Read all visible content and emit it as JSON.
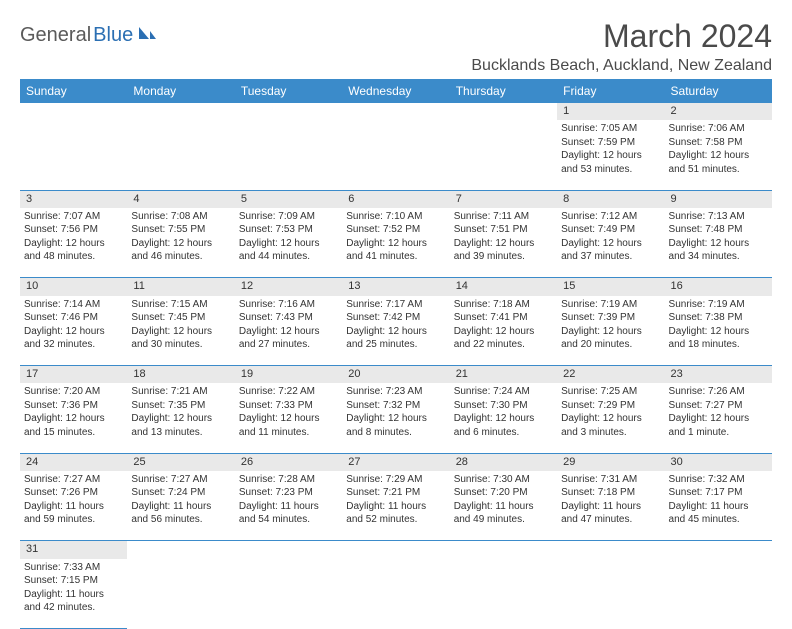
{
  "logo": {
    "text1": "General",
    "text2": "Blue"
  },
  "title": "March 2024",
  "location": "Bucklands Beach, Auckland, New Zealand",
  "colors": {
    "header_bg": "#3b8bca",
    "header_text": "#ffffff",
    "daynum_bg": "#e9e9e9",
    "row_divider": "#3b8bca",
    "text": "#333333",
    "logo_gray": "#5a5a5a",
    "logo_blue": "#2b6fb3"
  },
  "daysOfWeek": [
    "Sunday",
    "Monday",
    "Tuesday",
    "Wednesday",
    "Thursday",
    "Friday",
    "Saturday"
  ],
  "weeks": [
    [
      null,
      null,
      null,
      null,
      null,
      {
        "n": "1",
        "sunrise": "Sunrise: 7:05 AM",
        "sunset": "Sunset: 7:59 PM",
        "day1": "Daylight: 12 hours",
        "day2": "and 53 minutes."
      },
      {
        "n": "2",
        "sunrise": "Sunrise: 7:06 AM",
        "sunset": "Sunset: 7:58 PM",
        "day1": "Daylight: 12 hours",
        "day2": "and 51 minutes."
      }
    ],
    [
      {
        "n": "3",
        "sunrise": "Sunrise: 7:07 AM",
        "sunset": "Sunset: 7:56 PM",
        "day1": "Daylight: 12 hours",
        "day2": "and 48 minutes."
      },
      {
        "n": "4",
        "sunrise": "Sunrise: 7:08 AM",
        "sunset": "Sunset: 7:55 PM",
        "day1": "Daylight: 12 hours",
        "day2": "and 46 minutes."
      },
      {
        "n": "5",
        "sunrise": "Sunrise: 7:09 AM",
        "sunset": "Sunset: 7:53 PM",
        "day1": "Daylight: 12 hours",
        "day2": "and 44 minutes."
      },
      {
        "n": "6",
        "sunrise": "Sunrise: 7:10 AM",
        "sunset": "Sunset: 7:52 PM",
        "day1": "Daylight: 12 hours",
        "day2": "and 41 minutes."
      },
      {
        "n": "7",
        "sunrise": "Sunrise: 7:11 AM",
        "sunset": "Sunset: 7:51 PM",
        "day1": "Daylight: 12 hours",
        "day2": "and 39 minutes."
      },
      {
        "n": "8",
        "sunrise": "Sunrise: 7:12 AM",
        "sunset": "Sunset: 7:49 PM",
        "day1": "Daylight: 12 hours",
        "day2": "and 37 minutes."
      },
      {
        "n": "9",
        "sunrise": "Sunrise: 7:13 AM",
        "sunset": "Sunset: 7:48 PM",
        "day1": "Daylight: 12 hours",
        "day2": "and 34 minutes."
      }
    ],
    [
      {
        "n": "10",
        "sunrise": "Sunrise: 7:14 AM",
        "sunset": "Sunset: 7:46 PM",
        "day1": "Daylight: 12 hours",
        "day2": "and 32 minutes."
      },
      {
        "n": "11",
        "sunrise": "Sunrise: 7:15 AM",
        "sunset": "Sunset: 7:45 PM",
        "day1": "Daylight: 12 hours",
        "day2": "and 30 minutes."
      },
      {
        "n": "12",
        "sunrise": "Sunrise: 7:16 AM",
        "sunset": "Sunset: 7:43 PM",
        "day1": "Daylight: 12 hours",
        "day2": "and 27 minutes."
      },
      {
        "n": "13",
        "sunrise": "Sunrise: 7:17 AM",
        "sunset": "Sunset: 7:42 PM",
        "day1": "Daylight: 12 hours",
        "day2": "and 25 minutes."
      },
      {
        "n": "14",
        "sunrise": "Sunrise: 7:18 AM",
        "sunset": "Sunset: 7:41 PM",
        "day1": "Daylight: 12 hours",
        "day2": "and 22 minutes."
      },
      {
        "n": "15",
        "sunrise": "Sunrise: 7:19 AM",
        "sunset": "Sunset: 7:39 PM",
        "day1": "Daylight: 12 hours",
        "day2": "and 20 minutes."
      },
      {
        "n": "16",
        "sunrise": "Sunrise: 7:19 AM",
        "sunset": "Sunset: 7:38 PM",
        "day1": "Daylight: 12 hours",
        "day2": "and 18 minutes."
      }
    ],
    [
      {
        "n": "17",
        "sunrise": "Sunrise: 7:20 AM",
        "sunset": "Sunset: 7:36 PM",
        "day1": "Daylight: 12 hours",
        "day2": "and 15 minutes."
      },
      {
        "n": "18",
        "sunrise": "Sunrise: 7:21 AM",
        "sunset": "Sunset: 7:35 PM",
        "day1": "Daylight: 12 hours",
        "day2": "and 13 minutes."
      },
      {
        "n": "19",
        "sunrise": "Sunrise: 7:22 AM",
        "sunset": "Sunset: 7:33 PM",
        "day1": "Daylight: 12 hours",
        "day2": "and 11 minutes."
      },
      {
        "n": "20",
        "sunrise": "Sunrise: 7:23 AM",
        "sunset": "Sunset: 7:32 PM",
        "day1": "Daylight: 12 hours",
        "day2": "and 8 minutes."
      },
      {
        "n": "21",
        "sunrise": "Sunrise: 7:24 AM",
        "sunset": "Sunset: 7:30 PM",
        "day1": "Daylight: 12 hours",
        "day2": "and 6 minutes."
      },
      {
        "n": "22",
        "sunrise": "Sunrise: 7:25 AM",
        "sunset": "Sunset: 7:29 PM",
        "day1": "Daylight: 12 hours",
        "day2": "and 3 minutes."
      },
      {
        "n": "23",
        "sunrise": "Sunrise: 7:26 AM",
        "sunset": "Sunset: 7:27 PM",
        "day1": "Daylight: 12 hours",
        "day2": "and 1 minute."
      }
    ],
    [
      {
        "n": "24",
        "sunrise": "Sunrise: 7:27 AM",
        "sunset": "Sunset: 7:26 PM",
        "day1": "Daylight: 11 hours",
        "day2": "and 59 minutes."
      },
      {
        "n": "25",
        "sunrise": "Sunrise: 7:27 AM",
        "sunset": "Sunset: 7:24 PM",
        "day1": "Daylight: 11 hours",
        "day2": "and 56 minutes."
      },
      {
        "n": "26",
        "sunrise": "Sunrise: 7:28 AM",
        "sunset": "Sunset: 7:23 PM",
        "day1": "Daylight: 11 hours",
        "day2": "and 54 minutes."
      },
      {
        "n": "27",
        "sunrise": "Sunrise: 7:29 AM",
        "sunset": "Sunset: 7:21 PM",
        "day1": "Daylight: 11 hours",
        "day2": "and 52 minutes."
      },
      {
        "n": "28",
        "sunrise": "Sunrise: 7:30 AM",
        "sunset": "Sunset: 7:20 PM",
        "day1": "Daylight: 11 hours",
        "day2": "and 49 minutes."
      },
      {
        "n": "29",
        "sunrise": "Sunrise: 7:31 AM",
        "sunset": "Sunset: 7:18 PM",
        "day1": "Daylight: 11 hours",
        "day2": "and 47 minutes."
      },
      {
        "n": "30",
        "sunrise": "Sunrise: 7:32 AM",
        "sunset": "Sunset: 7:17 PM",
        "day1": "Daylight: 11 hours",
        "day2": "and 45 minutes."
      }
    ],
    [
      {
        "n": "31",
        "sunrise": "Sunrise: 7:33 AM",
        "sunset": "Sunset: 7:15 PM",
        "day1": "Daylight: 11 hours",
        "day2": "and 42 minutes."
      },
      null,
      null,
      null,
      null,
      null,
      null
    ]
  ]
}
